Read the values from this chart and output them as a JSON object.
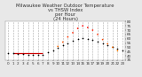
{
  "title": "Milwaukee Weather Outdoor Temperature\nvs THSW Index\nper Hour\n(24 Hours)",
  "background_color": "#e8e8e8",
  "plot_bg": "#ffffff",
  "hours": [
    0,
    1,
    2,
    3,
    4,
    5,
    6,
    7,
    8,
    9,
    10,
    11,
    12,
    13,
    14,
    15,
    16,
    17,
    18,
    19,
    20,
    21,
    22,
    23
  ],
  "temp_values": [
    43,
    43,
    42,
    42,
    41,
    41,
    41,
    41,
    44,
    46,
    49,
    52,
    55,
    58,
    60,
    61,
    60,
    59,
    57,
    54,
    52,
    50,
    48,
    46
  ],
  "thsw_values": [
    null,
    null,
    null,
    null,
    null,
    null,
    null,
    null,
    null,
    null,
    51,
    56,
    62,
    67,
    72,
    75,
    73,
    70,
    65,
    59,
    54,
    50,
    46,
    null
  ],
  "hline_y": 43,
  "hline_xstart": 1,
  "hline_xend": 7,
  "temp_color": "#000000",
  "line_color": "#cc0000",
  "ylim_min": 35,
  "ylim_max": 80,
  "yticks": [
    35,
    40,
    45,
    50,
    55,
    60,
    65,
    70,
    75,
    80
  ],
  "grid_color": "#aaaaaa",
  "title_fontsize": 3.8,
  "tick_fontsize": 3.0,
  "marker_size": 1.5
}
